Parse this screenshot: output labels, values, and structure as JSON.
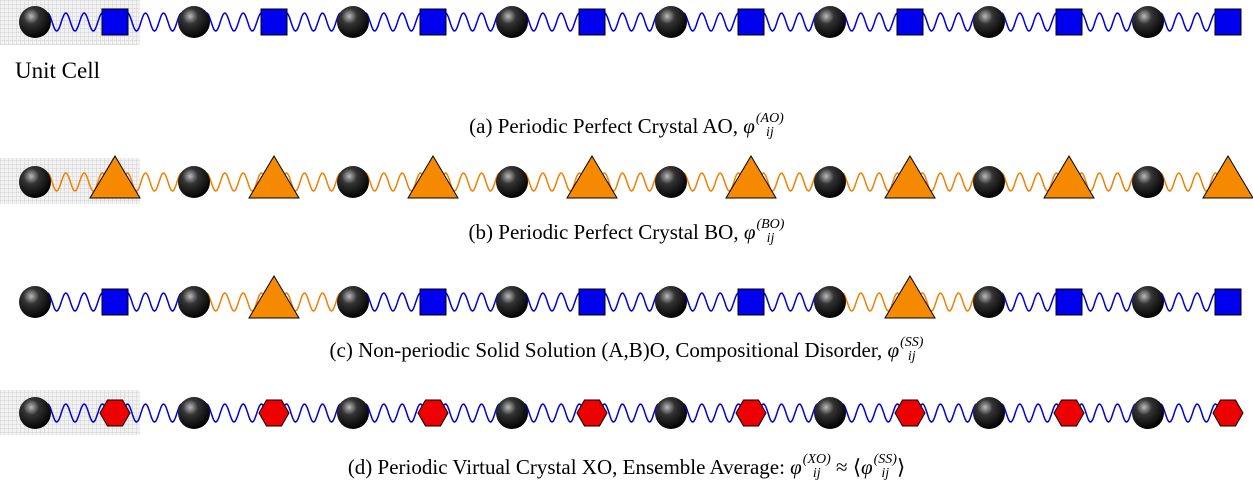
{
  "unit_cell_label": "Unit Cell",
  "captions": [
    {
      "text": "(a) Periodic Perfect Crystal AO,",
      "math": [
        {
          "base": "φ",
          "sub": "ij",
          "sup": "(AO)"
        }
      ]
    },
    {
      "text": "(b) Periodic Perfect Crystal BO,",
      "math": [
        {
          "base": "φ",
          "sub": "ij",
          "sup": "(BO)"
        }
      ]
    },
    {
      "text": "(c) Non-periodic Solid Solution (A,B)O, Compositional Disorder,",
      "math": [
        {
          "base": "φ",
          "sub": "ij",
          "sup": "(SS)"
        }
      ]
    },
    {
      "text": "(d) Periodic Virtual Crystal XO, Ensemble Average:",
      "math": [
        {
          "base": "φ",
          "sub": "ij",
          "sup": "(XO)"
        },
        {
          "pre": "≈ ⟨",
          "base": "φ",
          "sub": "ij",
          "sup": "(SS)",
          "post": "⟩"
        }
      ]
    }
  ]
}
